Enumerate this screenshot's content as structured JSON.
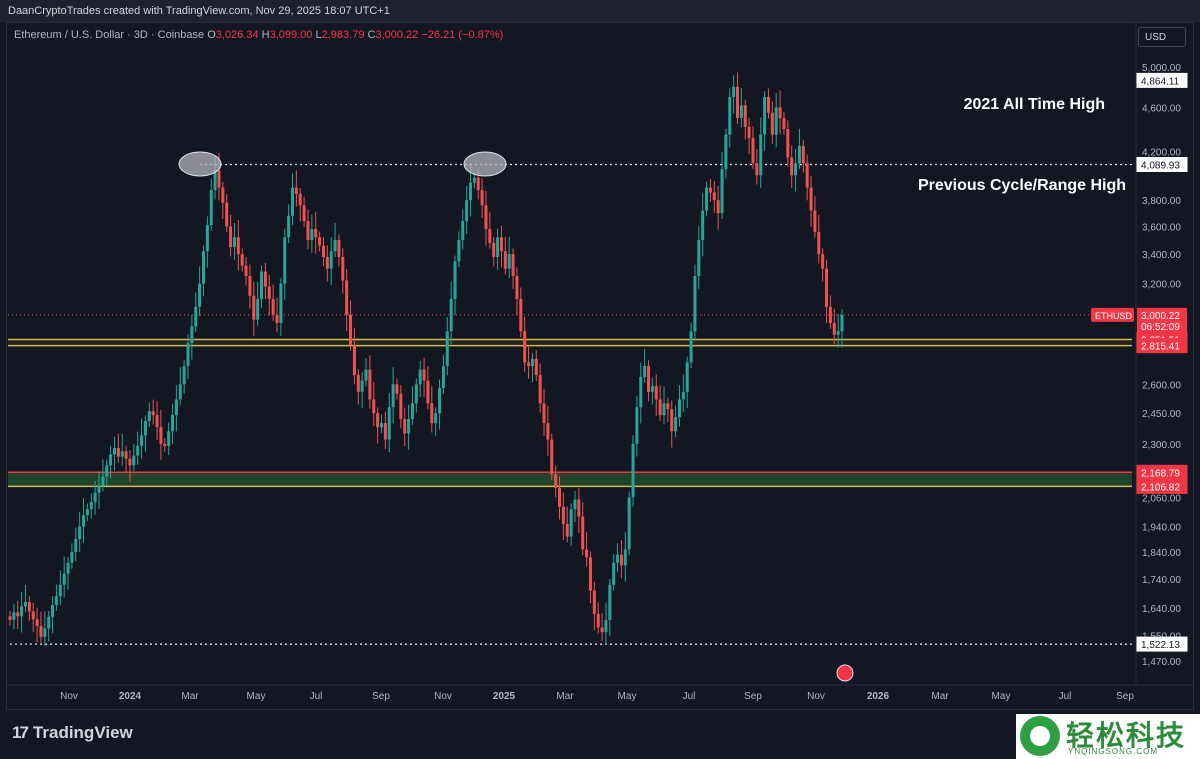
{
  "header": {
    "credit": "DaanCryptoTrades created with TradingView.com, Nov 29, 2025 18:07 UTC+1"
  },
  "symbol_bar": {
    "name": "Ethereum / U.S. Dollar · 3D · Coinbase",
    "o_label": "O",
    "o_value": "3,026.34",
    "h_label": "H",
    "h_value": "3,099.00",
    "l_label": "L",
    "l_value": "2,983.79",
    "c_label": "C",
    "c_value": "3,000.22",
    "change": "−26.21 (−0.87%)"
  },
  "currency_button": "USD",
  "footer": {
    "logo_text": "TradingView",
    "watermark_cn": "轻松科技",
    "watermark_url": "YNQINGSONG.COM"
  },
  "colors": {
    "up": "#26a69a",
    "down": "#ef5350",
    "background": "#131722",
    "yellow_band": "#d4b94a",
    "green_band": "#2e7d32",
    "red_level": "#f23645"
  },
  "chart_data": {
    "type": "candlestick",
    "symbol": "ETHUSD",
    "timeframe": "3D",
    "log_scale": true,
    "y_ticks": [
      5000,
      4600,
      4200,
      3800,
      3600,
      3400,
      3200,
      2600,
      2450,
      2300,
      2060,
      1940,
      1840,
      1740,
      1640,
      1550,
      1470
    ],
    "y_tick_labels": [
      "5,000.00",
      "4,600.00",
      "4,200.00",
      "3,800.00",
      "3,600.00",
      "3,400.00",
      "3,200.00",
      "2,600.00",
      "2,450.00",
      "2,300.00",
      "2,060.00",
      "1,940.00",
      "1,840.00",
      "1,740.00",
      "1,640.00",
      "1,550.00",
      "1,470.00"
    ],
    "x_tick_labels": [
      "Nov",
      "2024",
      "Mar",
      "May",
      "Jul",
      "Sep",
      "Nov",
      "2025",
      "Mar",
      "May",
      "Jul",
      "Sep",
      "Nov",
      "2026",
      "Mar",
      "May",
      "Jul",
      "Sep"
    ],
    "price_levels": [
      {
        "value": 4864.11,
        "label": "4,864.11",
        "style": "dotted-white"
      },
      {
        "value": 4089.93,
        "label": "4,089.93",
        "style": "dotted-white"
      },
      {
        "value": 1522.13,
        "label": "1,522.13",
        "style": "dotted-white"
      },
      {
        "value": 2851.51,
        "label": "2,851.51",
        "style": "yellow-band-top"
      },
      {
        "value": 2815.41,
        "label": "2,815.41",
        "style": "yellow-band-bottom"
      },
      {
        "value": 2168.79,
        "label": "2,168.79",
        "style": "green-band-top"
      },
      {
        "value": 2106.82,
        "label": "2,106.82",
        "style": "green-band-bottom"
      }
    ],
    "current_price": {
      "label": "ETHUSD",
      "value": "3,000.22",
      "countdown": "06:52:09"
    },
    "annotations": [
      "2021 All Time High",
      "Previous Cycle/Range High"
    ],
    "candles_close": [
      1600,
      1625,
      1612,
      1645,
      1660,
      1628,
      1602,
      1580,
      1545,
      1572,
      1610,
      1650,
      1680,
      1720,
      1760,
      1800,
      1840,
      1890,
      1940,
      1985,
      2010,
      2040,
      2080,
      2110,
      2150,
      2200,
      2250,
      2280,
      2240,
      2265,
      2230,
      2200,
      2245,
      2290,
      2340,
      2410,
      2460,
      2440,
      2380,
      2300,
      2290,
      2360,
      2440,
      2520,
      2600,
      2700,
      2830,
      2930,
      3050,
      3200,
      3420,
      3610,
      3880,
      4040,
      3900,
      3780,
      3600,
      3450,
      3520,
      3400,
      3320,
      3250,
      3120,
      2970,
      3100,
      3280,
      3180,
      3100,
      3000,
      2950,
      3200,
      3520,
      3680,
      3900,
      3850,
      3760,
      3640,
      3500,
      3580,
      3520,
      3460,
      3380,
      3300,
      3420,
      3500,
      3380,
      3220,
      3000,
      2820,
      2650,
      2560,
      2620,
      2680,
      2520,
      2450,
      2380,
      2400,
      2320,
      2480,
      2600,
      2550,
      2420,
      2350,
      2420,
      2500,
      2600,
      2680,
      2620,
      2500,
      2400,
      2450,
      2580,
      2700,
      2900,
      3100,
      3350,
      3500,
      3640,
      3800,
      3940,
      3980,
      3880,
      3760,
      3580,
      3480,
      3380,
      3520,
      3420,
      3300,
      3400,
      3250,
      3100,
      2900,
      2720,
      2700,
      2740,
      2650,
      2500,
      2400,
      2320,
      2160,
      2100,
      2020,
      1950,
      1900,
      2010,
      2050,
      1980,
      1850,
      1820,
      1700,
      1620,
      1575,
      1560,
      1600,
      1720,
      1800,
      1830,
      1790,
      1850,
      2060,
      2300,
      2480,
      2640,
      2700,
      2560,
      2590,
      2520,
      2440,
      2500,
      2470,
      2360,
      2430,
      2520,
      2560,
      2720,
      2900,
      3250,
      3500,
      3720,
      3900,
      3860,
      3800,
      3700,
      4050,
      4350,
      4700,
      4800,
      4500,
      4620,
      4420,
      4320,
      4100,
      4000,
      4350,
      4700,
      4550,
      4350,
      4600,
      4500,
      4400,
      4150,
      4000,
      4100,
      4250,
      4100,
      3900,
      3720,
      3560,
      3400,
      3300,
      3050,
      2950,
      2880,
      2900,
      3000
    ]
  }
}
